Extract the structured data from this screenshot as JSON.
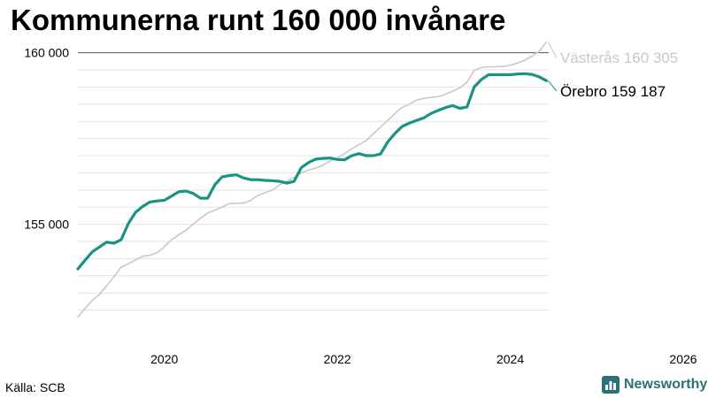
{
  "colors": {
    "orebro": "#1b9383",
    "vasteras": "#c8c8c8",
    "brand": "#2b6f78",
    "grid": "#e3e3e3",
    "baseline": "#555555"
  },
  "footer": {
    "source": "Källa: SCB",
    "brand": "Newsworthy",
    "brand_icon": "bar-chart-icon"
  },
  "chart_data": {
    "type": "line",
    "title": "Kommunerna runt 160 000 invånare",
    "xlabel": "",
    "ylabel": "",
    "xlim": [
      2019.0,
      2026.0
    ],
    "ylim": [
      152000,
      160300
    ],
    "x_ticks": [
      2020,
      2022,
      2024,
      2026
    ],
    "y_ticks": [
      155000,
      160000
    ],
    "gridlines": [
      152500,
      153000,
      153500,
      154000,
      154500,
      155000,
      155500,
      156000,
      156500,
      157000,
      157500,
      158000,
      158500,
      159000,
      159500
    ],
    "baseline_value": 160000,
    "grid": true,
    "legend": "line-end labels",
    "series": [
      {
        "name": "Örebro",
        "end_label": "Örebro 159 187",
        "color": "#1b9383",
        "x": [
          2019.0,
          2019.083,
          2019.167,
          2019.25,
          2019.333,
          2019.417,
          2019.5,
          2019.583,
          2019.667,
          2019.75,
          2019.833,
          2019.917,
          2020.0,
          2020.083,
          2020.167,
          2020.25,
          2020.333,
          2020.417,
          2020.5,
          2020.583,
          2020.667,
          2020.75,
          2020.833,
          2020.917,
          2021.0,
          2021.083,
          2021.167,
          2021.25,
          2021.333,
          2021.417,
          2021.5,
          2021.583,
          2021.667,
          2021.75,
          2021.833,
          2021.917,
          2022.0,
          2022.083,
          2022.167,
          2022.25,
          2022.333,
          2022.417,
          2022.5,
          2022.583,
          2022.667,
          2022.75,
          2022.833,
          2022.917,
          2023.0,
          2023.083,
          2023.167,
          2023.25,
          2023.333,
          2023.417,
          2023.5,
          2023.583,
          2023.667,
          2023.75,
          2023.833,
          2023.917,
          2024.0,
          2024.083,
          2024.167,
          2024.25,
          2024.333,
          2024.417
        ],
        "values": [
          153700,
          153950,
          154200,
          154340,
          154480,
          154450,
          154550,
          155020,
          155350,
          155520,
          155650,
          155680,
          155700,
          155820,
          155950,
          155970,
          155900,
          155760,
          155760,
          156150,
          156380,
          156420,
          156440,
          156350,
          156300,
          156300,
          156280,
          156270,
          156250,
          156200,
          156250,
          156650,
          156800,
          156900,
          156920,
          156930,
          156890,
          156880,
          157000,
          157060,
          157000,
          157000,
          157050,
          157400,
          157650,
          157850,
          157950,
          158030,
          158100,
          158230,
          158320,
          158400,
          158460,
          158380,
          158420,
          159000,
          159220,
          159360,
          159360,
          159360,
          159360,
          159380,
          159390,
          159370,
          159300,
          159187
        ]
      },
      {
        "name": "Västerås",
        "end_label": "Västerås 160 305",
        "color": "#c8c8c8",
        "x": [
          2019.0,
          2019.083,
          2019.167,
          2019.25,
          2019.333,
          2019.417,
          2019.5,
          2019.583,
          2019.667,
          2019.75,
          2019.833,
          2019.917,
          2020.0,
          2020.083,
          2020.167,
          2020.25,
          2020.333,
          2020.417,
          2020.5,
          2020.583,
          2020.667,
          2020.75,
          2020.833,
          2020.917,
          2021.0,
          2021.083,
          2021.167,
          2021.25,
          2021.333,
          2021.417,
          2021.5,
          2021.583,
          2021.667,
          2021.75,
          2021.833,
          2021.917,
          2022.0,
          2022.083,
          2022.167,
          2022.25,
          2022.333,
          2022.417,
          2022.5,
          2022.583,
          2022.667,
          2022.75,
          2022.833,
          2022.917,
          2023.0,
          2023.083,
          2023.167,
          2023.25,
          2023.333,
          2023.417,
          2023.5,
          2023.583,
          2023.667,
          2023.75,
          2023.833,
          2023.917,
          2024.0,
          2024.083,
          2024.167,
          2024.25,
          2024.333,
          2024.417
        ],
        "values": [
          152300,
          152550,
          152780,
          152960,
          153210,
          153470,
          153750,
          153850,
          153960,
          154070,
          154100,
          154170,
          154350,
          154550,
          154690,
          154830,
          155000,
          155180,
          155330,
          155410,
          155500,
          155600,
          155610,
          155620,
          155700,
          155840,
          155920,
          156000,
          156150,
          156260,
          156370,
          156500,
          156580,
          156640,
          156720,
          156850,
          156930,
          157060,
          157200,
          157320,
          157440,
          157640,
          157830,
          158030,
          158230,
          158410,
          158500,
          158620,
          158670,
          158700,
          158720,
          158790,
          158880,
          158980,
          159140,
          159480,
          159570,
          159590,
          159590,
          159600,
          159640,
          159700,
          159780,
          159900,
          160040,
          160305
        ]
      }
    ]
  }
}
